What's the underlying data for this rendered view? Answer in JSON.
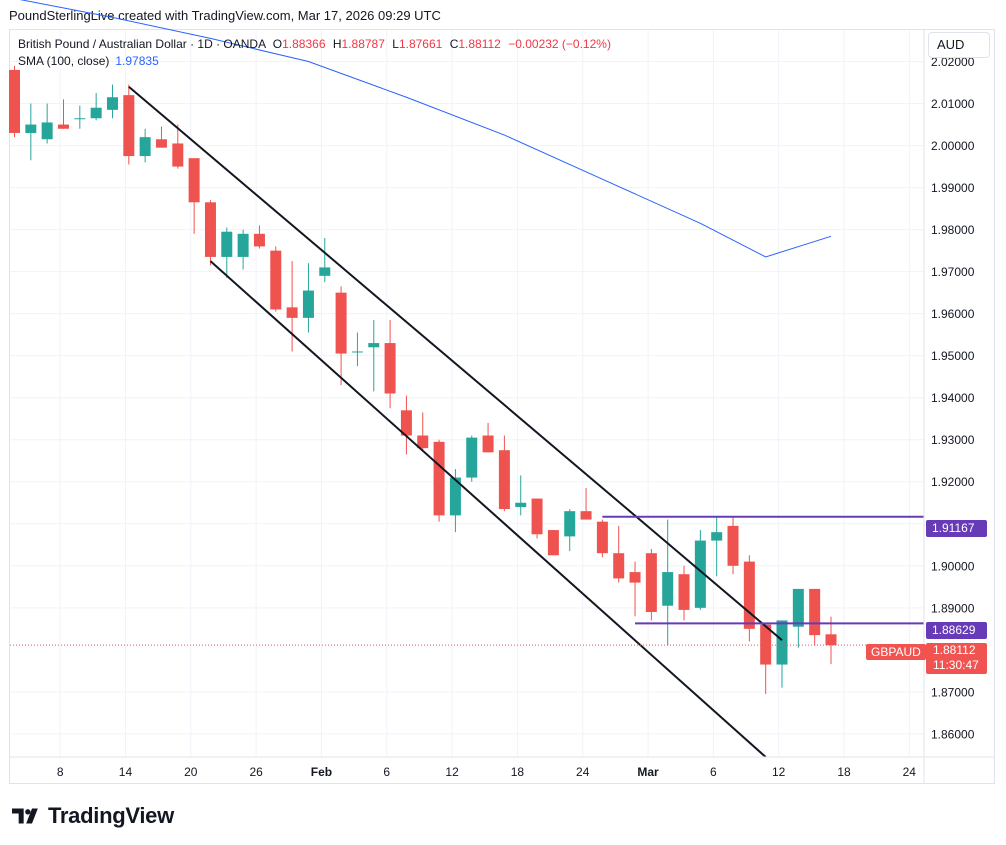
{
  "attribution": "PoundSterlingLive created with TradingView.com, Mar 17, 2026 09:29 UTC",
  "legend": {
    "symbol": "British Pound / Australian Dollar · 1D · OANDA",
    "open_label": "O",
    "open": "1.88366",
    "high_label": "H",
    "high": "1.88787",
    "low_label": "L",
    "low": "1.87661",
    "close_label": "C",
    "close": "1.88112",
    "change": "−0.00232 (−0.12%)",
    "sma_label": "SMA (100, close)",
    "sma_value": "1.97835"
  },
  "currency_button": "AUD",
  "logo_text": "TradingView",
  "price_tags": {
    "resistance": "1.91167",
    "support": "1.88629",
    "symbol": "GBPAUD",
    "last_price": "1.88112",
    "countdown": "11:30:47"
  },
  "colors": {
    "up": "#26a69a",
    "down": "#ef5350",
    "sma": "#2962ff",
    "levels": "#673ab7",
    "channel": "#131722",
    "grid": "#f0f3fa"
  },
  "chart_data": {
    "type": "candlestick",
    "title": "British Pound / Australian Dollar · 1D · OANDA",
    "ylim": [
      1.8545,
      2.0275
    ],
    "y_ticks": [
      2.02,
      2.01,
      2.0,
      1.99,
      1.98,
      1.97,
      1.96,
      1.95,
      1.94,
      1.93,
      1.92,
      1.91,
      1.9,
      1.89,
      1.87,
      1.86
    ],
    "y_tick_labels": [
      "2.02000",
      "2.01000",
      "2.00000",
      "1.99000",
      "1.98000",
      "1.97000",
      "1.96000",
      "1.95000",
      "1.94000",
      "1.93000",
      "1.92000",
      "1.91000",
      "1.90000",
      "1.89000",
      "1.87000",
      "1.86000"
    ],
    "x_ticks": [
      {
        "label": "8",
        "index": 2
      },
      {
        "label": "14",
        "index": 6
      },
      {
        "label": "20",
        "index": 10
      },
      {
        "label": "26",
        "index": 14
      },
      {
        "label": "Feb",
        "index": 18
      },
      {
        "label": "6",
        "index": 22
      },
      {
        "label": "12",
        "index": 26
      },
      {
        "label": "18",
        "index": 30
      },
      {
        "label": "24",
        "index": 34
      },
      {
        "label": "Mar",
        "index": 38
      },
      {
        "label": "6",
        "index": 42
      },
      {
        "label": "12",
        "index": 46
      },
      {
        "label": "18",
        "index": 50
      },
      {
        "label": "24",
        "index": 54
      }
    ],
    "candles": [
      {
        "o": 2.018,
        "h": 2.019,
        "l": 2.002,
        "c": 2.003
      },
      {
        "o": 2.003,
        "h": 2.01,
        "l": 1.9965,
        "c": 2.005
      },
      {
        "o": 2.0015,
        "h": 2.01,
        "l": 2.0005,
        "c": 2.0055
      },
      {
        "o": 2.005,
        "h": 2.011,
        "l": 2.004,
        "c": 2.004
      },
      {
        "o": 2.0065,
        "h": 2.0095,
        "l": 2.004,
        "c": 2.0065
      },
      {
        "o": 2.0065,
        "h": 2.0125,
        "l": 2.006,
        "c": 2.009
      },
      {
        "o": 2.0085,
        "h": 2.0145,
        "l": 2.0065,
        "c": 2.0115
      },
      {
        "o": 2.012,
        "h": 2.0145,
        "l": 1.9955,
        "c": 1.9975
      },
      {
        "o": 1.9975,
        "h": 2.004,
        "l": 1.996,
        "c": 2.002
      },
      {
        "o": 2.0015,
        "h": 2.0045,
        "l": 1.9995,
        "c": 1.9995
      },
      {
        "o": 2.0005,
        "h": 2.005,
        "l": 1.9945,
        "c": 1.995
      },
      {
        "o": 1.997,
        "h": 1.997,
        "l": 1.979,
        "c": 1.9865
      },
      {
        "o": 1.9865,
        "h": 1.987,
        "l": 1.9715,
        "c": 1.9735
      },
      {
        "o": 1.9735,
        "h": 1.9805,
        "l": 1.9685,
        "c": 1.9795
      },
      {
        "o": 1.9735,
        "h": 1.98,
        "l": 1.9705,
        "c": 1.979
      },
      {
        "o": 1.979,
        "h": 1.981,
        "l": 1.9755,
        "c": 1.976
      },
      {
        "o": 1.975,
        "h": 1.976,
        "l": 1.9605,
        "c": 1.961
      },
      {
        "o": 1.9615,
        "h": 1.9725,
        "l": 1.951,
        "c": 1.959
      },
      {
        "o": 1.959,
        "h": 1.972,
        "l": 1.9555,
        "c": 1.9655
      },
      {
        "o": 1.969,
        "h": 1.978,
        "l": 1.9675,
        "c": 1.971
      },
      {
        "o": 1.965,
        "h": 1.9665,
        "l": 1.943,
        "c": 1.9505
      },
      {
        "o": 1.951,
        "h": 1.9555,
        "l": 1.9475,
        "c": 1.951
      },
      {
        "o": 1.952,
        "h": 1.9585,
        "l": 1.9415,
        "c": 1.953
      },
      {
        "o": 1.953,
        "h": 1.9585,
        "l": 1.9375,
        "c": 1.941
      },
      {
        "o": 1.937,
        "h": 1.9405,
        "l": 1.9265,
        "c": 1.931
      },
      {
        "o": 1.931,
        "h": 1.9365,
        "l": 1.9275,
        "c": 1.928
      },
      {
        "o": 1.9295,
        "h": 1.93,
        "l": 1.9105,
        "c": 1.912
      },
      {
        "o": 1.912,
        "h": 1.923,
        "l": 1.908,
        "c": 1.921
      },
      {
        "o": 1.921,
        "h": 1.931,
        "l": 1.92,
        "c": 1.9305
      },
      {
        "o": 1.931,
        "h": 1.934,
        "l": 1.927,
        "c": 1.927
      },
      {
        "o": 1.9275,
        "h": 1.931,
        "l": 1.913,
        "c": 1.9135
      },
      {
        "o": 1.914,
        "h": 1.9215,
        "l": 1.912,
        "c": 1.915
      },
      {
        "o": 1.916,
        "h": 1.916,
        "l": 1.9065,
        "c": 1.9075
      },
      {
        "o": 1.9085,
        "h": 1.9085,
        "l": 1.9025,
        "c": 1.9025
      },
      {
        "o": 1.907,
        "h": 1.9135,
        "l": 1.9035,
        "c": 1.913
      },
      {
        "o": 1.913,
        "h": 1.9185,
        "l": 1.911,
        "c": 1.911
      },
      {
        "o": 1.9105,
        "h": 1.911,
        "l": 1.902,
        "c": 1.903
      },
      {
        "o": 1.903,
        "h": 1.9095,
        "l": 1.896,
        "c": 1.897
      },
      {
        "o": 1.8985,
        "h": 1.901,
        "l": 1.888,
        "c": 1.896
      },
      {
        "o": 1.903,
        "h": 1.904,
        "l": 1.887,
        "c": 1.889
      },
      {
        "o": 1.8905,
        "h": 1.911,
        "l": 1.881,
        "c": 1.8985
      },
      {
        "o": 1.898,
        "h": 1.9,
        "l": 1.887,
        "c": 1.8895
      },
      {
        "o": 1.89,
        "h": 1.9085,
        "l": 1.8895,
        "c": 1.906
      },
      {
        "o": 1.906,
        "h": 1.9115,
        "l": 1.8975,
        "c": 1.908
      },
      {
        "o": 1.9095,
        "h": 1.9115,
        "l": 1.898,
        "c": 1.9
      },
      {
        "o": 1.901,
        "h": 1.9025,
        "l": 1.882,
        "c": 1.885
      },
      {
        "o": 1.886,
        "h": 1.8865,
        "l": 1.8695,
        "c": 1.8765
      },
      {
        "o": 1.8765,
        "h": 1.887,
        "l": 1.871,
        "c": 1.887
      },
      {
        "o": 1.8855,
        "h": 1.8945,
        "l": 1.8805,
        "c": 1.8945
      },
      {
        "o": 1.8945,
        "h": 1.8945,
        "l": 1.881,
        "c": 1.8835
      },
      {
        "o": 1.8837,
        "h": 1.8879,
        "l": 1.8766,
        "c": 1.8811
      }
    ],
    "series": [
      {
        "name": "SMA (100, close)",
        "type": "line",
        "points": [
          [
            0,
            2.035
          ],
          [
            6,
            2.0305
          ],
          [
            12,
            2.0255
          ],
          [
            18,
            2.02
          ],
          [
            24,
            2.0115
          ],
          [
            30,
            2.0025
          ],
          [
            36,
            1.992
          ],
          [
            42,
            1.9815
          ],
          [
            46,
            1.9735
          ],
          [
            50,
            1.9784
          ]
        ]
      }
    ],
    "annotations": {
      "channel_upper": [
        [
          7,
          2.014
        ],
        [
          47,
          1.8823
        ]
      ],
      "channel_lower": [
        [
          12,
          1.9725
        ],
        [
          46,
          1.8545
        ]
      ],
      "resistance": {
        "value": 1.91167,
        "from_index": 36
      },
      "support": {
        "value": 1.88629,
        "from_index": 38
      },
      "last_price_line": 1.88112
    }
  }
}
